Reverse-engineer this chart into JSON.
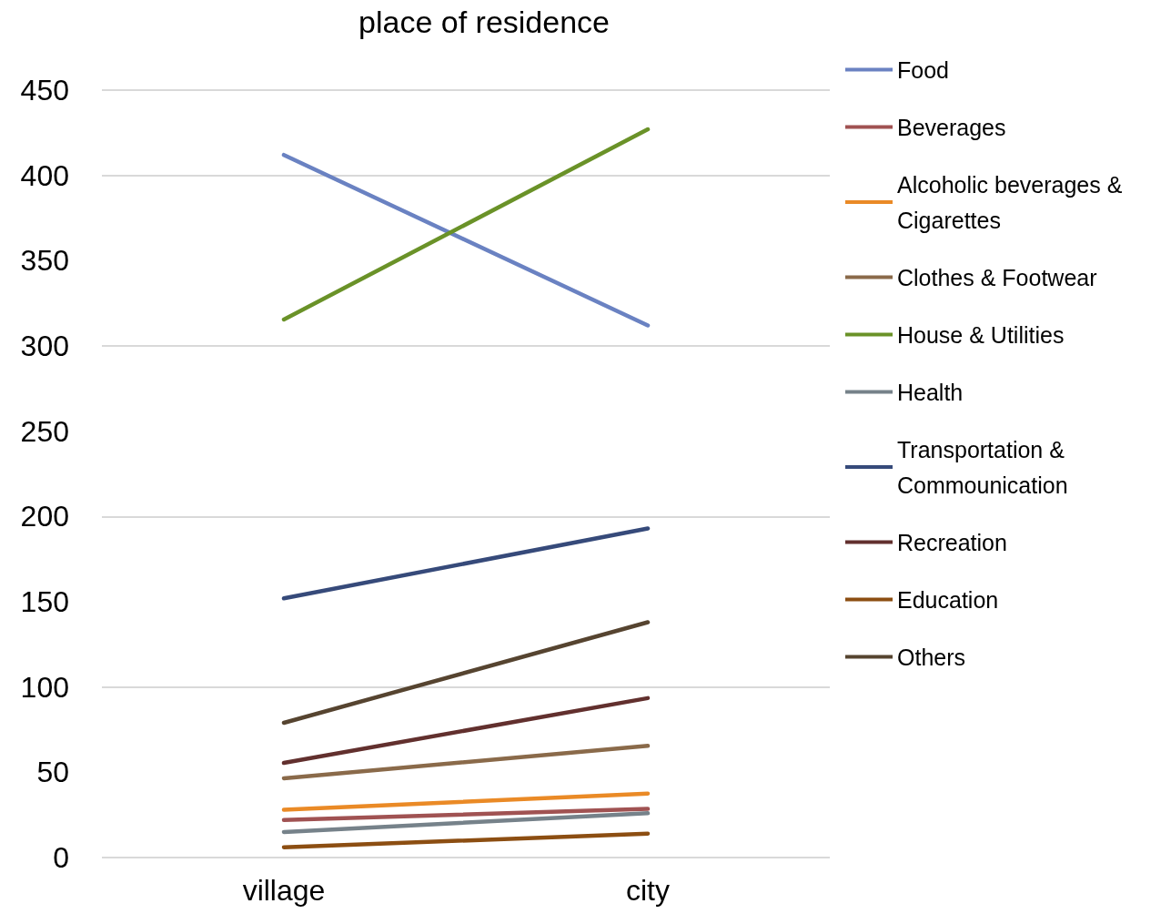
{
  "chart_data": {
    "type": "line",
    "title": "place of residence",
    "categories": [
      "village",
      "city"
    ],
    "series": [
      {
        "name": "Food",
        "color": "#6a82c2",
        "values": [
          412,
          312
        ]
      },
      {
        "name": "Beverages",
        "color": "#a05252",
        "values": [
          22,
          28.5
        ]
      },
      {
        "name": "Alcoholic beverages & Cigarettes",
        "color": "#ea8a26",
        "values": [
          28,
          37.5
        ]
      },
      {
        "name": "Clothes & Footwear",
        "color": "#8a6a4a",
        "values": [
          46.5,
          65.5
        ]
      },
      {
        "name": "House & Utilities",
        "color": "#6a9228",
        "values": [
          315.5,
          427
        ]
      },
      {
        "name": "Health",
        "color": "#76828a",
        "values": [
          15,
          26
        ]
      },
      {
        "name": "Transportation &Commounication",
        "color": "#364a7a",
        "values": [
          152,
          193
        ]
      },
      {
        "name": "Recreation",
        "color": "#62302e",
        "values": [
          55.5,
          93.5
        ]
      },
      {
        "name": "Education",
        "color": "#8c4e12",
        "values": [
          6,
          14
        ]
      },
      {
        "name": "Others",
        "color": "#564430",
        "values": [
          79,
          138
        ]
      }
    ],
    "ylim": [
      0,
      450
    ],
    "yticks": [
      0,
      50,
      100,
      150,
      200,
      250,
      300,
      350,
      400,
      450
    ],
    "grid": "y",
    "legend": "right",
    "marker": "none"
  }
}
